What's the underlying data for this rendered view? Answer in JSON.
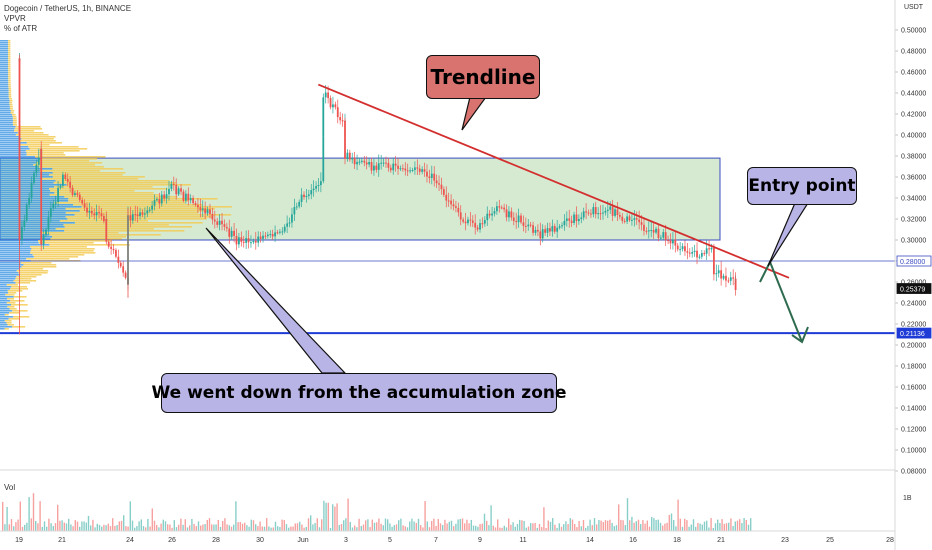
{
  "legend": {
    "title": "Dogecoin / TetherUS, 1h, BINANCE",
    "line2": "VPVR",
    "line3": "% of ATR"
  },
  "volume_pane": {
    "label": "Vol",
    "tick": "1B"
  },
  "price_axis": {
    "currency_label": "USDT",
    "ticks": [
      "0.50000",
      "0.48000",
      "0.46000",
      "0.44000",
      "0.42000",
      "0.40000",
      "0.38000",
      "0.36000",
      "0.34000",
      "0.32000",
      "0.30000",
      "0.28000",
      "0.26000",
      "0.24000",
      "0.22000",
      "0.20000",
      "0.18000",
      "0.16000",
      "0.14000",
      "0.12000",
      "0.10000",
      "0.08000"
    ],
    "badges": [
      {
        "text": "0.28000",
        "value": 0.28,
        "color": "#3b4cc0",
        "style": "outline"
      },
      {
        "text": "0.25379",
        "value": 0.25379,
        "color": "#111111",
        "style": "dark"
      },
      {
        "text": "0.21136",
        "value": 0.21136,
        "color": "#1f3bd6",
        "style": "solid"
      }
    ]
  },
  "time_axis": {
    "labels": [
      "19",
      "21",
      "24",
      "26",
      "28",
      "30",
      "Jun",
      "3",
      "5",
      "7",
      "9",
      "11",
      "14",
      "16",
      "18",
      "21",
      "23",
      "25",
      "28"
    ]
  },
  "annotations": {
    "trendline_label": "Trendline",
    "entry_label": "Entry point",
    "zone_label": "We went down from the accumulation zone"
  },
  "colors": {
    "trendline": "#d32f2f",
    "zone_fill": "#cfe6c9",
    "zone_border": "#3b4cc0",
    "support_line": "#1f3bd6",
    "arrow": "#2e6b4f",
    "candle_up": "#26a69a",
    "candle_down": "#ef5350",
    "vpvr_blue": "#2f8fe0",
    "vpvr_yellow": "#f2c94c",
    "callout_trendline": "#d9736f",
    "callout_entry": "#b9b4e6",
    "callout_zone": "#b9b4e6"
  },
  "chart_data": {
    "type": "candlestick",
    "symbol": "Dogecoin / TetherUS",
    "interval": "1h",
    "exchange": "BINANCE",
    "ylim": [
      0.08,
      0.5
    ],
    "accumulation_zone": [
      0.3,
      0.378
    ],
    "resistance_level": 0.28,
    "support_level": 0.21136,
    "last_price": 0.25379,
    "trendline": {
      "from": {
        "x": "Jun 2",
        "y": 0.448
      },
      "to": {
        "x": "Jun 23",
        "y": 0.264
      }
    },
    "close_path": [
      {
        "x": "May 19",
        "y": 0.47
      },
      {
        "x": "May 19",
        "y": 0.3
      },
      {
        "x": "May 20",
        "y": 0.39
      },
      {
        "x": "May 20",
        "y": 0.3
      },
      {
        "x": "May 21",
        "y": 0.36
      },
      {
        "x": "May 22",
        "y": 0.33
      },
      {
        "x": "May 23",
        "y": 0.32
      },
      {
        "x": "May 23",
        "y": 0.3
      },
      {
        "x": "May 24",
        "y": 0.26
      },
      {
        "x": "May 24",
        "y": 0.32
      },
      {
        "x": "May 25",
        "y": 0.33
      },
      {
        "x": "May 26",
        "y": 0.35
      },
      {
        "x": "May 27",
        "y": 0.335
      },
      {
        "x": "May 28",
        "y": 0.32
      },
      {
        "x": "May 29",
        "y": 0.3
      },
      {
        "x": "May 30",
        "y": 0.3
      },
      {
        "x": "May 31",
        "y": 0.305
      },
      {
        "x": "Jun 1",
        "y": 0.34
      },
      {
        "x": "Jun 2",
        "y": 0.36
      },
      {
        "x": "Jun 2",
        "y": 0.44
      },
      {
        "x": "Jun 3",
        "y": 0.41
      },
      {
        "x": "Jun 3",
        "y": 0.38
      },
      {
        "x": "Jun 4",
        "y": 0.37
      },
      {
        "x": "Jun 5",
        "y": 0.37
      },
      {
        "x": "Jun 6",
        "y": 0.37
      },
      {
        "x": "Jun 7",
        "y": 0.36
      },
      {
        "x": "Jun 8",
        "y": 0.33
      },
      {
        "x": "Jun 9",
        "y": 0.31
      },
      {
        "x": "Jun 10",
        "y": 0.33
      },
      {
        "x": "Jun 11",
        "y": 0.32
      },
      {
        "x": "Jun 12",
        "y": 0.305
      },
      {
        "x": "Jun 13",
        "y": 0.315
      },
      {
        "x": "Jun 14",
        "y": 0.325
      },
      {
        "x": "Jun 15",
        "y": 0.33
      },
      {
        "x": "Jun 16",
        "y": 0.32
      },
      {
        "x": "Jun 17",
        "y": 0.31
      },
      {
        "x": "Jun 18",
        "y": 0.3
      },
      {
        "x": "Jun 19",
        "y": 0.285
      },
      {
        "x": "Jun 20",
        "y": 0.29
      },
      {
        "x": "Jun 20",
        "y": 0.27
      },
      {
        "x": "Jun 21",
        "y": 0.26
      },
      {
        "x": "Jun 21",
        "y": 0.25379
      }
    ]
  }
}
